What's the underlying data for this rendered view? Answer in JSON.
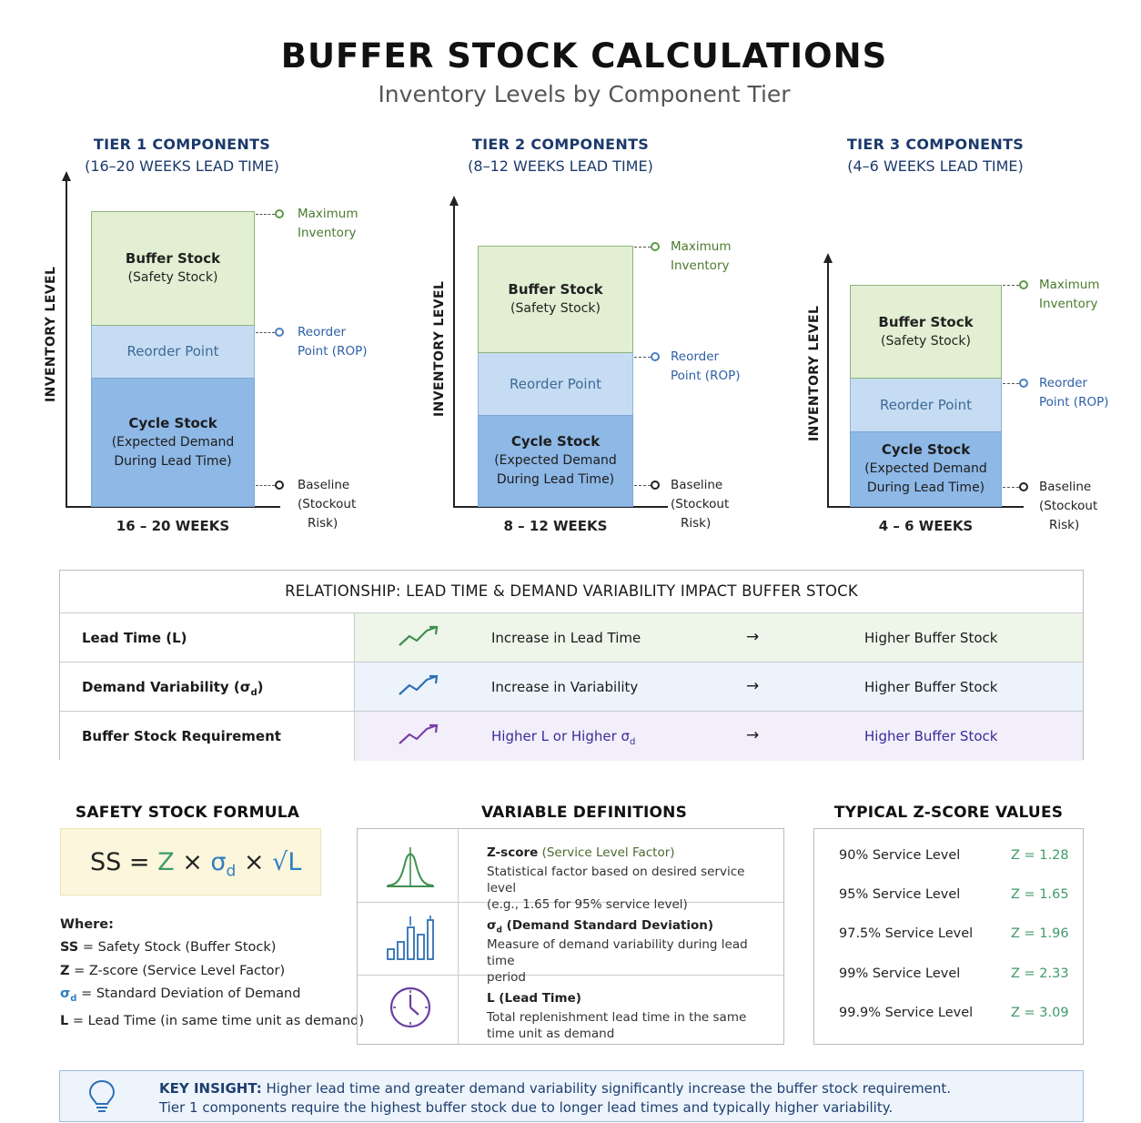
{
  "header": {
    "title": "BUFFER STOCK CALCULATIONS",
    "subtitle": "Inventory Levels by Component Tier"
  },
  "tiers": [
    {
      "title": "TIER 1 COMPONENTS",
      "subtitle": "(16–20 WEEKS LEAD TIME)",
      "y_axis_label": "INVENTORY LEVEL",
      "x_label": "16 – 20 WEEKS",
      "buffer_title": "Buffer Stock",
      "buffer_sub": "(Safety Stock)",
      "rop_label": "Reorder Point",
      "cycle_title": "Cycle Stock",
      "cycle_sub1": "(Expected Demand",
      "cycle_sub2": "During Lead Time)",
      "max_line1": "Maximum",
      "max_line2": "Inventory",
      "rop_line1": "Reorder",
      "rop_line2": "Point (ROP)",
      "base_line1": "Baseline",
      "base_line2": "(Stockout",
      "base_line3": "Risk)"
    },
    {
      "title": "TIER 2 COMPONENTS",
      "subtitle": "(8–12 WEEKS LEAD TIME)",
      "y_axis_label": "INVENTORY LEVEL",
      "x_label": "8 – 12 WEEKS",
      "buffer_title": "Buffer Stock",
      "buffer_sub": "(Safety Stock)",
      "rop_label": "Reorder Point",
      "cycle_title": "Cycle Stock",
      "cycle_sub1": "(Expected Demand",
      "cycle_sub2": "During Lead Time)",
      "max_line1": "Maximum",
      "max_line2": "Inventory",
      "rop_line1": "Reorder",
      "rop_line2": "Point (ROP)",
      "base_line1": "Baseline",
      "base_line2": "(Stockout",
      "base_line3": "Risk)"
    },
    {
      "title": "TIER 3 COMPONENTS",
      "subtitle": "(4–6 WEEKS LEAD TIME)",
      "y_axis_label": "INVENTORY LEVEL",
      "x_label": "4 – 6 WEEKS",
      "buffer_title": "Buffer Stock",
      "buffer_sub": "(Safety Stock)",
      "rop_label": "Reorder Point",
      "cycle_title": "Cycle Stock",
      "cycle_sub1": "(Expected Demand",
      "cycle_sub2": "During Lead Time)",
      "max_line1": "Maximum",
      "max_line2": "Inventory",
      "rop_line1": "Reorder",
      "rop_line2": "Point (ROP)",
      "base_line1": "Baseline",
      "base_line2": "(Stockout",
      "base_line3": "Risk)"
    }
  ],
  "relationship": {
    "title": "RELATIONSHIP: LEAD TIME & DEMAND VARIABILITY IMPACT BUFFER STOCK",
    "arrow": "→",
    "rows": [
      {
        "label": "Lead Time (L)",
        "effect": "Increase in Lead Time",
        "result": "Higher Buffer Stock",
        "icon": "trend-up-green-icon",
        "color": "#3f8f4e",
        "bg": "#eef5e9"
      },
      {
        "label": "Demand Variability (σ",
        "label_sub": "d",
        "label_end": ")",
        "effect": "Increase in Variability",
        "result": "Higher Buffer Stock",
        "icon": "trend-up-blue-icon",
        "color": "#2e6fb5",
        "bg": "#ecf3fb"
      },
      {
        "label": "Buffer Stock Requirement",
        "effect": "Higher L or Higher σ",
        "effect_sub": "d",
        "result": "Higher Buffer Stock",
        "icon": "trend-up-purple-icon",
        "color": "#7a3fa8",
        "bg": "#f3effa"
      }
    ]
  },
  "formula": {
    "heading": "SAFETY STOCK FORMULA",
    "ss": "SS",
    "eq": "=",
    "z": "Z",
    "times": "×",
    "sigma": "σ",
    "sigma_sub": "d",
    "sqrt": "√L",
    "where_label": "Where:",
    "defs": [
      {
        "sym": "SS",
        "sub": "",
        "text": " = Safety Stock (Buffer Stock)"
      },
      {
        "sym": "Z",
        "sub": "",
        "text": " = Z-score (Service Level Factor)"
      },
      {
        "sym": "σ",
        "sub": "d",
        "text": " = Standard Deviation of Demand"
      },
      {
        "sym": "L",
        "sub": "",
        "text": " = Lead Time (in same time unit as demand)"
      }
    ]
  },
  "definitions": {
    "heading": "VARIABLE DEFINITIONS",
    "items": [
      {
        "icon": "bell-curve-icon",
        "title_bold": "Z-score",
        "title_rest": " (Service Level Factor)",
        "desc1": "Statistical factor based on desired service level",
        "desc2": "(e.g., 1.65 for 95% service level)"
      },
      {
        "icon": "bar-chart-icon",
        "title_bold": "σ",
        "title_sub": "d",
        "title_rest": " (Demand Standard Deviation)",
        "desc1": "Measure of demand variability during lead time",
        "desc2": "period"
      },
      {
        "icon": "clock-icon",
        "title_bold": "L (Lead Time)",
        "title_rest": "",
        "desc1": "Total replenishment lead time in the same",
        "desc2": "time unit as demand"
      }
    ]
  },
  "zscores": {
    "heading": "TYPICAL Z-SCORE VALUES",
    "rows": [
      {
        "level": "90% Service Level",
        "z": "Z = 1.28"
      },
      {
        "level": "95% Service Level",
        "z": "Z = 1.65"
      },
      {
        "level": "97.5% Service Level",
        "z": "Z = 1.96"
      },
      {
        "level": "99% Service Level",
        "z": "Z = 2.33"
      },
      {
        "level": "99.9% Service Level",
        "z": "Z = 3.09"
      }
    ]
  },
  "insight": {
    "icon": "lightbulb-icon",
    "label": "KEY INSIGHT:",
    "line1": " Higher lead time and greater demand variability significantly increase the buffer stock requirement.",
    "line2": "Tier 1 components require the highest buffer stock due to longer lead times and typically higher variability."
  },
  "colors": {
    "buffer": "#e2efd2",
    "rop": "#c6dcf2",
    "cycle": "#8eb8e6",
    "zgreen": "#3f9a6a",
    "sigma_blue": "#2e7fc0",
    "title_navy": "#1b3a6b"
  }
}
